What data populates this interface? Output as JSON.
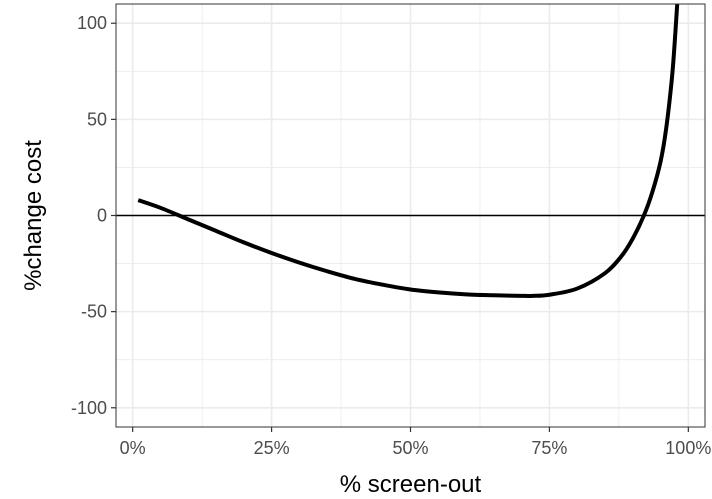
{
  "chart_data": {
    "type": "line",
    "title": "",
    "xlabel": "% screen-out",
    "ylabel": "%change cost",
    "xlim": [
      -0.03,
      1.03
    ],
    "ylim": [
      -110,
      110
    ],
    "x_ticks": [
      0,
      0.25,
      0.5,
      0.75,
      1.0
    ],
    "x_tick_labels": [
      "0%",
      "25%",
      "50%",
      "75%",
      "100%"
    ],
    "y_ticks": [
      -100,
      -50,
      0,
      50,
      100
    ],
    "y_tick_labels": [
      "-100",
      "-50",
      "0",
      "50",
      "100"
    ],
    "grid": true,
    "reference_line_y": 0,
    "series": [
      {
        "x": [
          0.01,
          0.05,
          0.1,
          0.15,
          0.2,
          0.25,
          0.3,
          0.35,
          0.4,
          0.45,
          0.5,
          0.55,
          0.6,
          0.65,
          0.7,
          0.72,
          0.75,
          0.8,
          0.85,
          0.88,
          0.9,
          0.92,
          0.935,
          0.95,
          0.96,
          0.97,
          0.975,
          0.98
        ],
        "y": [
          8,
          4,
          -2,
          -8,
          -14,
          -19.5,
          -24.5,
          -29,
          -33,
          -36,
          -38.5,
          -40,
          -41,
          -41.5,
          -41.8,
          -41.8,
          -41.2,
          -38,
          -30,
          -21,
          -12,
          0,
          12,
          28,
          45,
          70,
          88,
          110
        ]
      }
    ]
  },
  "colors": {
    "line": "#000000",
    "grid": "#ebebeb",
    "panel_border": "#333333",
    "tick_text": "#4d4d4d"
  }
}
